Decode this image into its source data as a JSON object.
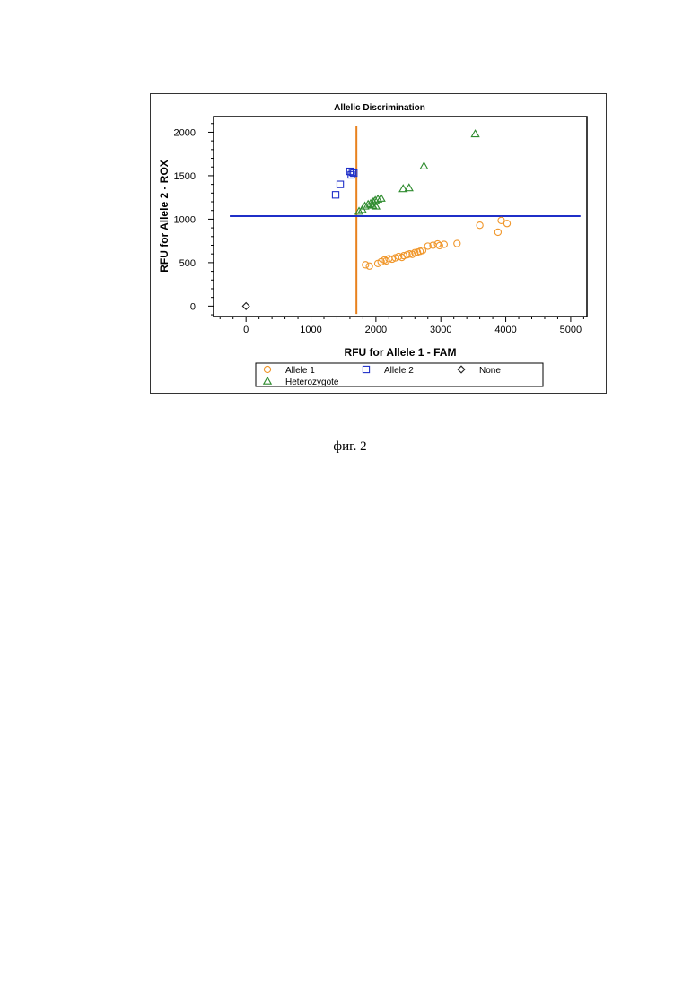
{
  "caption": "фиг. 2",
  "chart_data": {
    "type": "scatter",
    "title": "Allelic Discrimination",
    "xlabel": "RFU for Allele 1 - FAM",
    "ylabel": "RFU for Allele 2 - ROX",
    "xlim": [
      -500,
      5250
    ],
    "ylim": [
      -120,
      2180
    ],
    "xticks": [
      0,
      1000,
      2000,
      3000,
      4000,
      5000
    ],
    "yticks": [
      0,
      500,
      1000,
      1500,
      2000
    ],
    "grid": false,
    "legend_position": "bottom",
    "threshold_lines": {
      "x_threshold": 1700,
      "y_threshold": 1035,
      "x_color": "#e8821e",
      "y_color": "#1f2fc8"
    },
    "series": [
      {
        "name": "Allele 1",
        "marker": "circle",
        "color": "#f0962a",
        "points": [
          [
            1840,
            475
          ],
          [
            1900,
            460
          ],
          [
            2030,
            490
          ],
          [
            2080,
            510
          ],
          [
            2130,
            530
          ],
          [
            2160,
            520
          ],
          [
            2200,
            545
          ],
          [
            2250,
            540
          ],
          [
            2300,
            555
          ],
          [
            2350,
            570
          ],
          [
            2400,
            560
          ],
          [
            2430,
            580
          ],
          [
            2480,
            590
          ],
          [
            2520,
            600
          ],
          [
            2560,
            595
          ],
          [
            2600,
            615
          ],
          [
            2640,
            620
          ],
          [
            2680,
            630
          ],
          [
            2720,
            640
          ],
          [
            2800,
            690
          ],
          [
            2880,
            700
          ],
          [
            2950,
            715
          ],
          [
            2980,
            695
          ],
          [
            3050,
            710
          ],
          [
            3250,
            720
          ],
          [
            3600,
            930
          ],
          [
            3880,
            850
          ],
          [
            3930,
            985
          ],
          [
            4020,
            950
          ]
        ]
      },
      {
        "name": "Allele 2",
        "marker": "square",
        "color": "#1f2fc8",
        "points": [
          [
            1380,
            1280
          ],
          [
            1450,
            1400
          ],
          [
            1600,
            1550
          ],
          [
            1640,
            1540
          ],
          [
            1620,
            1510
          ],
          [
            1660,
            1530
          ]
        ]
      },
      {
        "name": "None",
        "marker": "diamond",
        "color": "#222222",
        "points": [
          [
            0,
            0
          ]
        ]
      },
      {
        "name": "Heterozygote",
        "marker": "triangle",
        "color": "#2e8b2e",
        "points": [
          [
            1740,
            1090
          ],
          [
            1790,
            1110
          ],
          [
            1830,
            1150
          ],
          [
            1880,
            1170
          ],
          [
            1920,
            1180
          ],
          [
            1960,
            1200
          ],
          [
            1990,
            1215
          ],
          [
            2030,
            1230
          ],
          [
            2080,
            1240
          ],
          [
            1950,
            1160
          ],
          [
            2000,
            1150
          ],
          [
            2420,
            1350
          ],
          [
            2510,
            1360
          ],
          [
            2740,
            1610
          ],
          [
            3530,
            1980
          ]
        ]
      }
    ]
  }
}
